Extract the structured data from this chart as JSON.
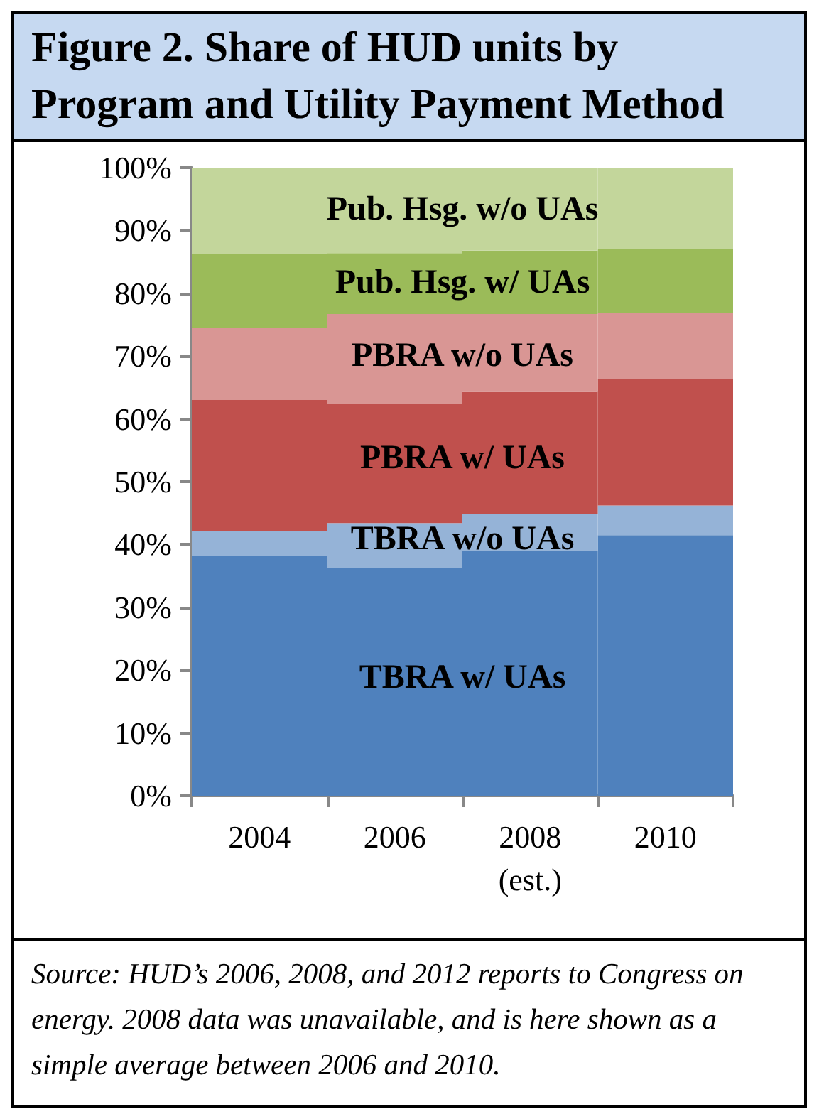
{
  "chart_data": {
    "type": "bar",
    "title": "Figure 2. Share of HUD units by Program and Utility Payment Method",
    "categories": [
      "2004",
      "2006",
      "2008\n(est.)",
      "2010"
    ],
    "stacked": true,
    "legend": false,
    "grid": false,
    "series": [
      {
        "name": "TBRA w/ UAs",
        "color": "#4f81bd",
        "values": [
          38.2,
          36.3,
          38.9,
          41.5
        ]
      },
      {
        "name": "TBRA w/o UAs",
        "color": "#95b3d7",
        "values": [
          3.9,
          7.1,
          5.9,
          4.7
        ]
      },
      {
        "name": "PBRA w/ UAs",
        "color": "#c0504d",
        "values": [
          20.9,
          19.0,
          19.5,
          20.2
        ]
      },
      {
        "name": "PBRA w/o UAs",
        "color": "#d99694",
        "values": [
          11.5,
          14.3,
          12.4,
          10.4
        ]
      },
      {
        "name": "Pub. Hsg. w/ UAs",
        "color": "#9bbb59",
        "values": [
          11.7,
          9.7,
          10.1,
          10.3
        ]
      },
      {
        "name": "Pub. Hsg. w/o UAs",
        "color": "#c3d69b",
        "values": [
          13.8,
          13.6,
          13.2,
          12.9
        ]
      }
    ],
    "ylim": [
      0,
      100
    ],
    "yticks": [
      {
        "value": 0,
        "label": "0%"
      },
      {
        "value": 10,
        "label": "10%"
      },
      {
        "value": 20,
        "label": "20%"
      },
      {
        "value": 30,
        "label": "30%"
      },
      {
        "value": 40,
        "label": "40%"
      },
      {
        "value": 50,
        "label": "50%"
      },
      {
        "value": 60,
        "label": "60%"
      },
      {
        "value": 70,
        "label": "70%"
      },
      {
        "value": 80,
        "label": "80%"
      },
      {
        "value": 90,
        "label": "90%"
      },
      {
        "value": 100,
        "label": "100%"
      }
    ],
    "annotations": [
      "Source: HUD’s 2006, 2008, and 2012 reports to Congress on energy.  2008 data was unavailable, and is here shown as a simple average between 2006 and 2010."
    ]
  }
}
